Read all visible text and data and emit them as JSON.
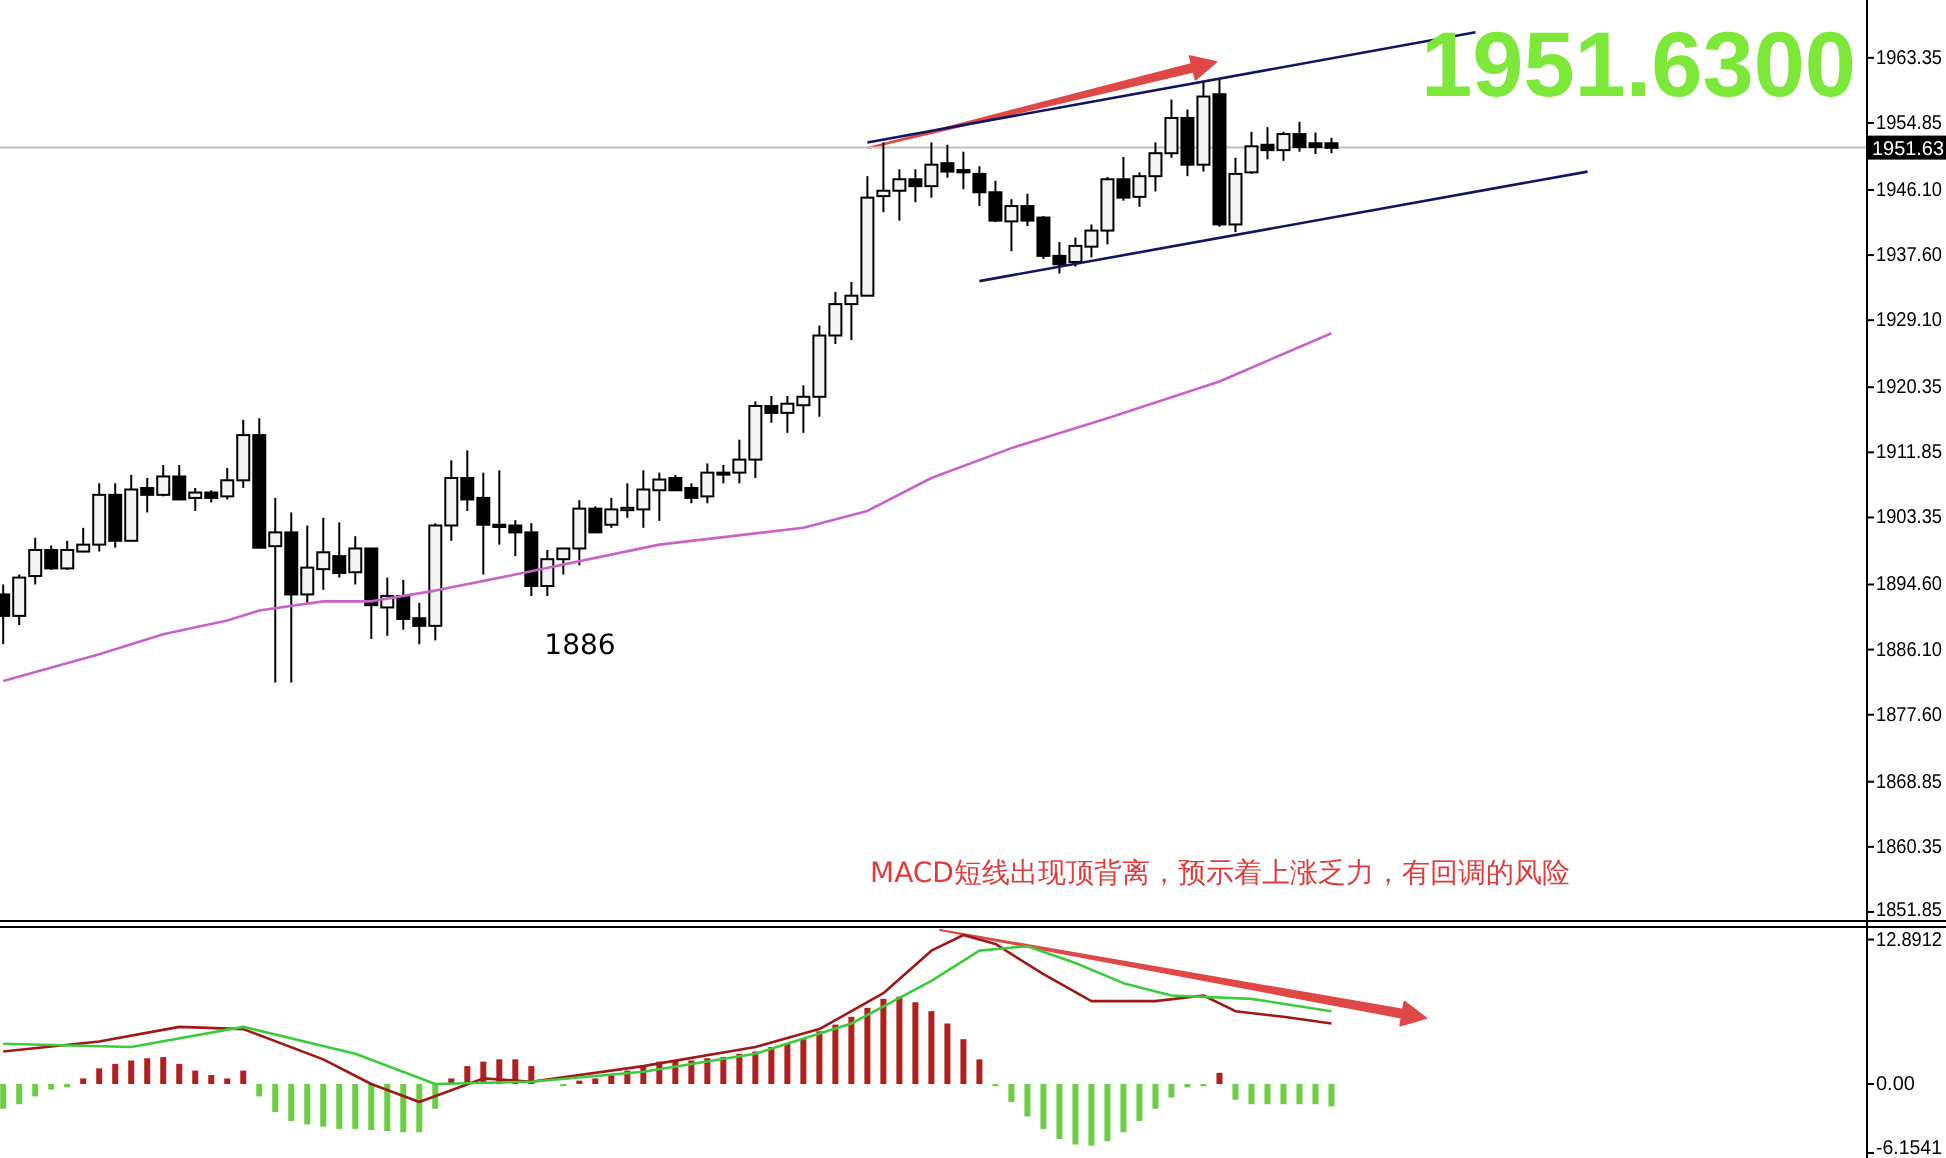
{
  "chart_data": [
    {
      "type": "candlestick",
      "tick_labels": "y",
      "categories": [
        null,
        null,
        null,
        null,
        null,
        null,
        null,
        null,
        null,
        null,
        null,
        null,
        null,
        null,
        null,
        null,
        null,
        null,
        null,
        null,
        null,
        null,
        null,
        null,
        null,
        null,
        null,
        null,
        null,
        null,
        null,
        null,
        null,
        null,
        null,
        null,
        null,
        null,
        null,
        null,
        null,
        null,
        null,
        null,
        null,
        null,
        null,
        null,
        null,
        null,
        null,
        null,
        null,
        null,
        null,
        null,
        null,
        null,
        null,
        null,
        null,
        null,
        null,
        null,
        null,
        null,
        null,
        null,
        null,
        null,
        null,
        null,
        null,
        null,
        null,
        null,
        null,
        null,
        null,
        null,
        null,
        null,
        null,
        null,
        null,
        null,
        null,
        null,
        null,
        null,
        null,
        null,
        null,
        null,
        null,
        null,
        null,
        null,
        null,
        null,
        null,
        null,
        null,
        null,
        null,
        null,
        null,
        null,
        null,
        null,
        null,
        null,
        null,
        null,
        null,
        null,
        null
      ],
      "ohlc": [
        [
          1893.3,
          1894.6,
          1886.8,
          1890.5
        ],
        [
          1890.5,
          1895.9,
          1889.3,
          1895.5
        ],
        [
          1895.7,
          1900.7,
          1894.6,
          1899.1
        ],
        [
          1899.1,
          1899.7,
          1896.5,
          1896.7
        ],
        [
          1896.7,
          1900.3,
          1896.5,
          1899.1
        ],
        [
          1898.9,
          1902.0,
          1898.8,
          1899.8
        ],
        [
          1899.8,
          1907.8,
          1898.9,
          1906.3
        ],
        [
          1906.3,
          1907.8,
          1899.4,
          1900.3
        ],
        [
          1900.3,
          1908.9,
          1900.3,
          1907.0
        ],
        [
          1907.2,
          1908.5,
          1904.0,
          1906.3
        ],
        [
          1906.3,
          1910.2,
          1906.1,
          1908.7
        ],
        [
          1908.7,
          1910.2,
          1905.7,
          1905.7
        ],
        [
          1905.9,
          1907.2,
          1904.2,
          1906.6
        ],
        [
          1906.6,
          1906.9,
          1905.3,
          1905.9
        ],
        [
          1906.1,
          1909.8,
          1905.7,
          1908.2
        ],
        [
          1908.2,
          1916.1,
          1907.2,
          1914.1
        ],
        [
          1914.1,
          1916.3,
          1899.4,
          1899.4
        ],
        [
          1899.6,
          1905.9,
          1881.8,
          1901.4
        ],
        [
          1901.4,
          1904.0,
          1881.8,
          1893.3
        ],
        [
          1893.3,
          1902.3,
          1892.2,
          1896.8
        ],
        [
          1896.6,
          1903.3,
          1893.9,
          1898.8
        ],
        [
          1898.3,
          1902.7,
          1895.5,
          1896.1
        ],
        [
          1896.2,
          1900.9,
          1894.6,
          1899.3
        ],
        [
          1899.3,
          1899.3,
          1887.5,
          1891.9
        ],
        [
          1891.6,
          1895.5,
          1887.9,
          1893.1
        ],
        [
          1893.1,
          1895.2,
          1888.7,
          1890.1
        ],
        [
          1890.2,
          1892.2,
          1886.8,
          1889.2
        ],
        [
          1889.2,
          1902.6,
          1887.3,
          1902.3
        ],
        [
          1902.3,
          1910.8,
          1900.3,
          1908.5
        ],
        [
          1908.5,
          1912.1,
          1904.2,
          1905.7
        ],
        [
          1905.9,
          1909.2,
          1895.9,
          1902.4
        ],
        [
          1902.4,
          1909.5,
          1899.8,
          1902.1
        ],
        [
          1902.3,
          1903.0,
          1898.3,
          1901.4
        ],
        [
          1901.4,
          1902.6,
          1893.1,
          1894.4
        ],
        [
          1894.4,
          1899.1,
          1893.1,
          1897.9
        ],
        [
          1897.9,
          1899.3,
          1895.9,
          1899.3
        ],
        [
          1899.3,
          1905.6,
          1897.1,
          1904.5
        ],
        [
          1904.5,
          1904.8,
          1901.4,
          1901.4
        ],
        [
          1902.4,
          1905.9,
          1902.0,
          1904.4
        ],
        [
          1904.3,
          1907.8,
          1903.3,
          1904.6
        ],
        [
          1904.4,
          1909.5,
          1902.0,
          1907.0
        ],
        [
          1906.9,
          1909.2,
          1902.9,
          1908.3
        ],
        [
          1908.5,
          1908.9,
          1906.8,
          1906.9
        ],
        [
          1907.2,
          1907.8,
          1905.2,
          1905.9
        ],
        [
          1906.1,
          1910.4,
          1905.2,
          1909.2
        ],
        [
          1909.0,
          1910.2,
          1907.8,
          1909.2
        ],
        [
          1909.2,
          1913.5,
          1907.8,
          1910.9
        ],
        [
          1910.9,
          1918.5,
          1908.5,
          1917.9
        ],
        [
          1917.9,
          1919.2,
          1915.7,
          1917.0
        ],
        [
          1917.0,
          1919.2,
          1914.4,
          1918.2
        ],
        [
          1918.0,
          1920.6,
          1914.4,
          1919.1
        ],
        [
          1919.1,
          1928.4,
          1916.5,
          1927.1
        ],
        [
          1927.1,
          1932.8,
          1926.0,
          1931.2
        ],
        [
          1931.2,
          1934.1,
          1926.5,
          1932.3
        ],
        [
          1932.3,
          1947.9,
          1932.3,
          1945.1
        ],
        [
          1945.3,
          1952.3,
          1943.2,
          1946.0
        ],
        [
          1946.0,
          1948.8,
          1942.1,
          1947.5
        ],
        [
          1947.5,
          1948.8,
          1944.5,
          1946.6
        ],
        [
          1946.6,
          1952.3,
          1945.1,
          1949.4
        ],
        [
          1949.6,
          1952.0,
          1947.7,
          1948.5
        ],
        [
          1948.7,
          1951.1,
          1946.2,
          1948.4
        ],
        [
          1948.2,
          1949.2,
          1944.0,
          1945.8
        ],
        [
          1945.8,
          1947.3,
          1941.9,
          1942.1
        ],
        [
          1942.0,
          1944.9,
          1938.1,
          1944.0
        ],
        [
          1944.0,
          1945.6,
          1941.4,
          1942.1
        ],
        [
          1942.5,
          1942.7,
          1937.1,
          1937.5
        ],
        [
          1937.5,
          1939.3,
          1935.2,
          1936.4
        ],
        [
          1936.7,
          1939.9,
          1936.1,
          1938.8
        ],
        [
          1938.7,
          1941.6,
          1937.3,
          1940.8
        ],
        [
          1940.8,
          1947.8,
          1939.0,
          1947.5
        ],
        [
          1947.5,
          1950.4,
          1944.7,
          1945.1
        ],
        [
          1945.2,
          1948.4,
          1943.9,
          1947.9
        ],
        [
          1947.9,
          1952.3,
          1945.9,
          1950.9
        ],
        [
          1950.9,
          1957.9,
          1950.3,
          1955.5
        ],
        [
          1955.5,
          1956.6,
          1947.9,
          1949.4
        ],
        [
          1949.4,
          1960.3,
          1948.5,
          1958.3
        ],
        [
          1958.6,
          1960.7,
          1941.3,
          1941.6
        ],
        [
          1941.6,
          1950.3,
          1940.6,
          1948.2
        ],
        [
          1948.4,
          1953.7,
          1948.2,
          1951.8
        ],
        [
          1952.0,
          1954.3,
          1950.1,
          1951.3
        ],
        [
          1951.3,
          1953.7,
          1949.9,
          1953.4
        ],
        [
          1953.4,
          1955.0,
          1951.1,
          1951.7
        ],
        [
          1952.2,
          1953.6,
          1950.8,
          1951.7
        ],
        [
          1952.2,
          1952.9,
          1950.9,
          1951.6
        ],
        null,
        null,
        null,
        null,
        null,
        null,
        null,
        null,
        null,
        null,
        null,
        null,
        null,
        null,
        null,
        null,
        null,
        null,
        null,
        null,
        null,
        null,
        null,
        null,
        null,
        null,
        null,
        null,
        null,
        null,
        null,
        null,
        null
      ],
      "series": [
        {
          "type": "line",
          "color": "#c864c8",
          "values": [
            1882.0,
            null,
            null,
            null,
            null,
            null,
            1885.5,
            null,
            null,
            null,
            1888.1,
            null,
            null,
            null,
            1889.9,
            null,
            1891.2,
            null,
            null,
            null,
            1892.4,
            null,
            null,
            1892.4,
            null,
            null,
            null,
            1893.8,
            null,
            null,
            null,
            null,
            1895.9,
            null,
            null,
            null,
            null,
            null,
            null,
            null,
            null,
            1899.8,
            null,
            null,
            null,
            null,
            null,
            null,
            null,
            null,
            1902.0,
            null,
            null,
            null,
            1904.2,
            null,
            null,
            null,
            1908.5,
            null,
            null,
            null,
            null,
            1912.4,
            null,
            null,
            null,
            null,
            null,
            1916.3,
            null,
            null,
            null,
            null,
            null,
            null,
            1921.1,
            null,
            null,
            null,
            null,
            null,
            null,
            1927.4,
            null,
            null,
            null,
            null,
            null,
            null,
            null,
            null,
            null,
            null,
            null,
            null,
            null,
            null,
            null,
            null,
            null,
            null,
            null,
            null,
            null,
            null,
            null,
            null,
            null,
            null,
            null,
            null,
            null,
            null,
            null,
            null,
            null
          ]
        },
        {
          "type": "line",
          "color": "#141464",
          "values": [
            null,
            null,
            null,
            null,
            null,
            null,
            null,
            null,
            null,
            null,
            null,
            null,
            null,
            null,
            null,
            null,
            null,
            null,
            null,
            null,
            null,
            null,
            null,
            null,
            null,
            null,
            null,
            null,
            null,
            null,
            null,
            null,
            null,
            null,
            null,
            null,
            null,
            null,
            null,
            null,
            null,
            null,
            null,
            null,
            null,
            null,
            null,
            null,
            null,
            null,
            null,
            null,
            null,
            null,
            1952.3,
            null,
            null,
            null,
            null,
            null,
            null,
            null,
            null,
            null,
            null,
            null,
            null,
            null,
            null,
            null,
            null,
            null,
            null,
            null,
            null,
            null,
            null,
            null,
            null,
            null,
            null,
            null,
            null,
            null,
            null,
            null,
            null,
            null,
            null,
            null,
            null,
            null,
            1966.7,
            null,
            null,
            null,
            null,
            null,
            null,
            null,
            null,
            null,
            null,
            null,
            null,
            null,
            null,
            null,
            null,
            null,
            null,
            null,
            null,
            null,
            null,
            null,
            null
          ]
        },
        {
          "type": "line",
          "color": "#141464",
          "values": [
            null,
            null,
            null,
            null,
            null,
            null,
            null,
            null,
            null,
            null,
            null,
            null,
            null,
            null,
            null,
            null,
            null,
            null,
            null,
            null,
            null,
            null,
            null,
            null,
            null,
            null,
            null,
            null,
            null,
            null,
            null,
            null,
            null,
            null,
            null,
            null,
            null,
            null,
            null,
            null,
            null,
            null,
            null,
            null,
            null,
            null,
            null,
            null,
            null,
            null,
            null,
            null,
            null,
            null,
            null,
            null,
            null,
            null,
            null,
            null,
            null,
            1934.2,
            null,
            null,
            null,
            null,
            null,
            null,
            null,
            null,
            null,
            null,
            null,
            null,
            null,
            null,
            null,
            null,
            null,
            null,
            null,
            null,
            null,
            null,
            null,
            null,
            null,
            null,
            null,
            null,
            null,
            null,
            null,
            null,
            null,
            null,
            null,
            null,
            null,
            1948.5,
            null,
            null,
            null,
            null,
            null,
            null,
            null,
            null,
            null,
            null,
            null,
            null,
            null,
            null,
            null,
            null,
            null
          ]
        }
      ],
      "ylim": [
        1850.8,
        1970.9
      ],
      "yticks": [
        1963.35,
        1954.85,
        {
          "value": 1946.1,
          "label": "1946.10"
        },
        {
          "value": 1937.6,
          "label": "1937.60"
        },
        {
          "value": 1929.1,
          "label": "1929.10"
        },
        1920.35,
        1911.85,
        1903.35,
        {
          "value": 1894.6,
          "label": "1894.60"
        },
        {
          "value": 1886.1,
          "label": "1886.10"
        },
        {
          "value": 1877.6,
          "label": "1877.60"
        },
        1868.85,
        1860.35,
        1851.85
      ],
      "ref_lines": [
        {
          "axis": "y",
          "value": 1951.63,
          "label": "1951.63",
          "color": "#c0c0c0"
        }
      ],
      "annotations": [
        "1951.6300",
        "1886",
        "MACD短线出现顶背离，预示着上涨乏力，有回调的风险"
      ]
    },
    {
      "type": "bar",
      "tick_labels": "y",
      "categories": [
        null,
        null,
        null,
        null,
        null,
        null,
        null,
        null,
        null,
        null,
        null,
        null,
        null,
        null,
        null,
        null,
        null,
        null,
        null,
        null,
        null,
        null,
        null,
        null,
        null,
        null,
        null,
        null,
        null,
        null,
        null,
        null,
        null,
        null,
        null,
        null,
        null,
        null,
        null,
        null,
        null,
        null,
        null,
        null,
        null,
        null,
        null,
        null,
        null,
        null,
        null,
        null,
        null,
        null,
        null,
        null,
        null,
        null,
        null,
        null,
        null,
        null,
        null,
        null,
        null,
        null,
        null,
        null,
        null,
        null,
        null,
        null,
        null,
        null,
        null,
        null,
        null,
        null,
        null,
        null,
        null,
        null,
        null,
        null,
        null,
        null,
        null,
        null,
        null,
        null,
        null,
        null,
        null,
        null,
        null,
        null,
        null,
        null,
        null,
        null,
        null,
        null,
        null,
        null,
        null,
        null,
        null,
        null,
        null,
        null,
        null,
        null,
        null,
        null,
        null,
        null,
        null
      ],
      "series": [
        {
          "type": "bar",
          "values": [
            -2.2,
            -1.8,
            -1.1,
            -0.5,
            -0.3,
            0.5,
            1.4,
            1.8,
            2.1,
            2.3,
            2.4,
            1.8,
            1.2,
            0.8,
            0.5,
            1.2,
            -1.1,
            -2.5,
            -3.3,
            -3.6,
            -3.8,
            -4.0,
            -4.0,
            -4.1,
            -4.2,
            -4.3,
            -4.3,
            -2.2,
            0.5,
            1.6,
            2.0,
            2.2,
            2.2,
            1.6,
            null,
            -0.2,
            0.3,
            0.5,
            0.8,
            1.2,
            1.6,
            2.0,
            2.1,
            2.1,
            2.3,
            2.4,
            2.7,
            2.9,
            3.3,
            3.6,
            4.0,
            4.7,
            5.3,
            6.0,
            6.8,
            7.6,
            7.8,
            7.3,
            6.5,
            5.4,
            4.0,
            2.2,
            -0.2,
            -1.6,
            -2.9,
            -4.0,
            -4.9,
            -5.4,
            -5.5,
            -5.1,
            -4.3,
            -3.3,
            -2.2,
            -1.2,
            -0.3,
            -0.2,
            1.0,
            -1.4,
            -1.8,
            -1.8,
            -1.8,
            -1.8,
            -1.8,
            -2.0,
            null,
            null,
            null,
            null,
            null,
            null,
            null,
            null,
            null,
            null,
            null,
            null,
            null,
            null,
            null,
            null,
            null,
            null,
            null,
            null,
            null,
            null,
            null,
            null,
            null,
            null,
            null,
            null,
            null,
            null,
            null,
            null,
            null
          ],
          "colors": [
            "#6ccc44",
            "#6ccc44",
            "#6ccc44",
            "#6ccc44",
            "#6ccc44",
            "#b02020",
            "#b02020",
            "#b02020",
            "#b02020",
            "#b02020",
            "#b02020",
            "#b02020",
            "#b02020",
            "#b02020",
            "#b02020",
            "#b02020",
            "#6ccc44",
            "#6ccc44",
            "#6ccc44",
            "#6ccc44",
            "#6ccc44",
            "#6ccc44",
            "#6ccc44",
            "#6ccc44",
            "#6ccc44",
            "#6ccc44",
            "#6ccc44",
            "#6ccc44",
            "#b02020",
            "#b02020",
            "#b02020",
            "#b02020",
            "#b02020",
            "#b02020",
            null,
            "#6ccc44",
            "#b02020",
            "#b02020",
            "#b02020",
            "#b02020",
            "#b02020",
            "#b02020",
            "#b02020",
            "#b02020",
            "#b02020",
            "#b02020",
            "#b02020",
            "#b02020",
            "#b02020",
            "#b02020",
            "#b02020",
            "#b02020",
            "#b02020",
            "#b02020",
            "#b02020",
            "#b02020",
            "#b02020",
            "#b02020",
            "#b02020",
            "#b02020",
            "#b02020",
            "#b02020",
            "#6ccc44",
            "#6ccc44",
            "#6ccc44",
            "#6ccc44",
            "#6ccc44",
            "#6ccc44",
            "#6ccc44",
            "#6ccc44",
            "#6ccc44",
            "#6ccc44",
            "#6ccc44",
            "#6ccc44",
            "#6ccc44",
            "#6ccc44",
            "#b02020",
            "#6ccc44",
            "#6ccc44",
            "#6ccc44",
            "#6ccc44",
            "#6ccc44",
            "#6ccc44",
            "#6ccc44",
            null,
            null,
            null,
            null,
            null,
            null,
            null,
            null,
            null,
            null,
            null,
            null,
            null,
            null,
            null,
            null,
            null,
            null,
            null,
            null,
            null,
            null,
            null,
            null,
            null,
            null,
            null,
            null,
            null,
            null,
            null,
            null,
            null
          ]
        },
        {
          "type": "line",
          "color": "#a01818",
          "values": [
            2.9,
            null,
            null,
            null,
            null,
            null,
            3.8,
            null,
            null,
            null,
            null,
            5.1,
            null,
            null,
            null,
            4.9,
            null,
            null,
            null,
            null,
            2.2,
            null,
            null,
            0,
            null,
            null,
            -1.6,
            null,
            null,
            null,
            0.5,
            null,
            null,
            0.2,
            null,
            null,
            null,
            null,
            null,
            null,
            1.6,
            null,
            null,
            null,
            null,
            null,
            null,
            3.3,
            null,
            null,
            null,
            4.9,
            null,
            null,
            null,
            8.1,
            null,
            null,
            11.9,
            null,
            13.3,
            null,
            12.5,
            null,
            null,
            9.8,
            null,
            null,
            7.4,
            null,
            null,
            null,
            7.4,
            null,
            null,
            7.9,
            null,
            6.5,
            null,
            null,
            6.0,
            null,
            null,
            5.4,
            null,
            null,
            null,
            null,
            null,
            null,
            null,
            null,
            null,
            null,
            null,
            null,
            null,
            null,
            null,
            null,
            null,
            null,
            null,
            null,
            null,
            null,
            null,
            null,
            null,
            null,
            null,
            null,
            null,
            null,
            null,
            null,
            null
          ]
        },
        {
          "type": "line",
          "color": "#3ccc3c",
          "values": [
            3.6,
            null,
            null,
            null,
            null,
            null,
            null,
            null,
            3.3,
            null,
            null,
            null,
            null,
            null,
            null,
            5.1,
            null,
            null,
            null,
            null,
            null,
            null,
            2.7,
            null,
            null,
            null,
            null,
            0,
            null,
            null,
            null,
            null,
            null,
            0.2,
            null,
            null,
            null,
            null,
            null,
            null,
            1.1,
            null,
            null,
            null,
            null,
            null,
            null,
            2.7,
            null,
            null,
            null,
            null,
            null,
            5.4,
            null,
            null,
            null,
            null,
            9.2,
            null,
            null,
            11.9,
            null,
            null,
            12.3,
            null,
            null,
            10.8,
            null,
            null,
            9.0,
            null,
            null,
            7.9,
            null,
            null,
            null,
            null,
            7.6,
            null,
            null,
            null,
            null,
            6.5,
            null,
            null,
            null,
            null,
            null,
            null,
            null,
            null,
            null,
            null,
            null,
            null,
            null,
            null,
            null,
            null,
            null,
            null,
            null,
            null,
            null,
            null,
            null,
            null,
            null,
            null,
            null,
            null,
            null,
            null,
            null,
            null,
            null
          ]
        }
      ],
      "ylim": [
        -6.6,
        14.1
      ],
      "yticks": [
        12.8912,
        {
          "value": 0,
          "label": "0.00"
        },
        -6.1541
      ]
    }
  ]
}
